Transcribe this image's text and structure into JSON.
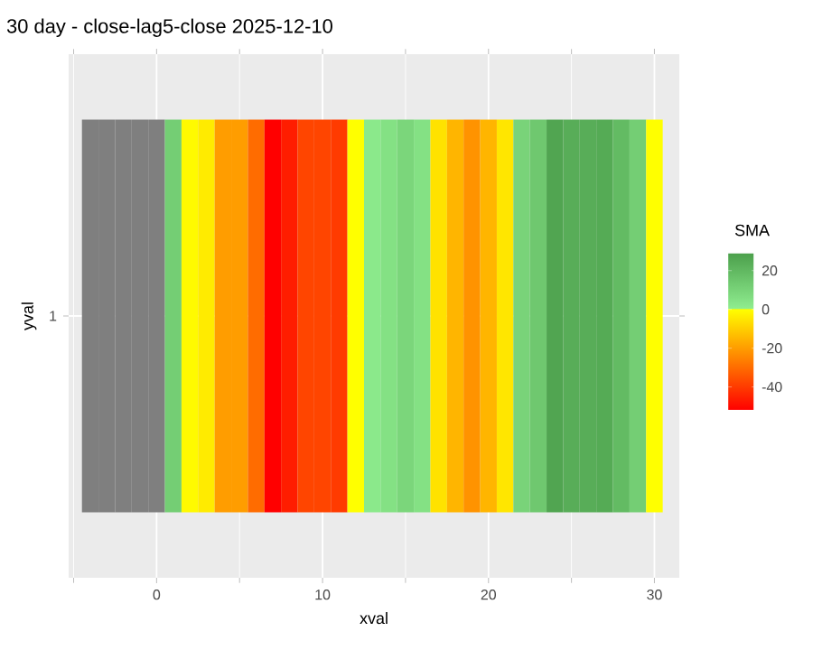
{
  "chart_data": {
    "type": "heatmap",
    "title": "30 day - close-lag5-close  2025-12-10",
    "xlabel": "xval",
    "ylabel": "yval",
    "clabel": "SMA",
    "x": [
      -4,
      -3,
      -2,
      -1,
      0,
      1,
      2,
      3,
      4,
      5,
      6,
      7,
      8,
      9,
      10,
      11,
      12,
      13,
      14,
      15,
      16,
      17,
      18,
      19,
      20,
      21,
      22,
      23,
      24,
      25,
      26,
      27,
      28,
      29,
      30
    ],
    "y_categories": [
      "1"
    ],
    "cells": [
      [
        null,
        null,
        null,
        null,
        null,
        12,
        -1,
        -4,
        -20,
        -20,
        -30,
        -52,
        -46,
        -38,
        -38,
        -40,
        0,
        2,
        5,
        9,
        5,
        -6,
        -15,
        -22,
        -15,
        -5,
        10,
        14,
        27,
        24,
        24,
        25,
        19,
        12,
        0
      ]
    ],
    "clim": [
      -52,
      29
    ],
    "cticks": [
      -40,
      -20,
      0,
      20
    ],
    "xlim": [
      -5.3,
      31.5
    ],
    "xticks": [
      0,
      10,
      20,
      30
    ],
    "grid": true
  }
}
